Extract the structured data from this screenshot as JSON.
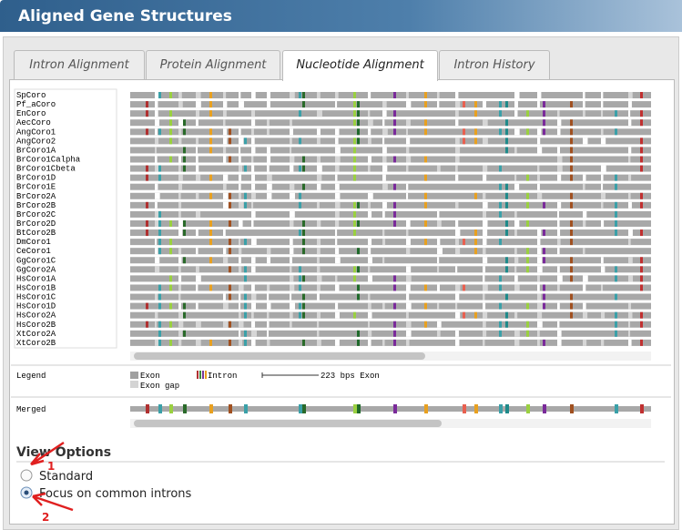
{
  "header": {
    "title": "Aligned Gene Structures"
  },
  "tabs": [
    "Intron Alignment",
    "Protein Alignment",
    "Nucleotide Alignment",
    "Intron History"
  ],
  "genes": [
    "SpCoro",
    "Pf_aCoro",
    "EnCoro",
    "AecCoro",
    "AngCoro1",
    "AngCoro2",
    "BrCoro1A",
    "BrCoro1Calpha",
    "BrCoro1Cbeta",
    "BrCoro1D",
    "BrCoro1E",
    "BrCoro2A",
    "BrCoro2B",
    "BrCoro2C",
    "BrCoro2D",
    "BtCoro2B",
    "DmCoro1",
    "CeCoro1",
    "GgCoro1C",
    "GgCoro2A",
    "HsCoro1A",
    "HsCoro1B",
    "HsCoro1C",
    "HsCoro1D",
    "HsCoro2A",
    "HsCoro2B",
    "XtCoro2A",
    "XtCoro2B"
  ],
  "legend": {
    "title": "Legend",
    "exon": "Exon",
    "intron": "Intron",
    "scale": "223 bps Exon",
    "exon_gap": "Exon gap"
  },
  "merged": {
    "label": "Merged"
  },
  "view_options": {
    "title": "View Options",
    "options": [
      "Standard",
      "Focus on common introns"
    ]
  },
  "annotations": [
    "1",
    "2"
  ]
}
